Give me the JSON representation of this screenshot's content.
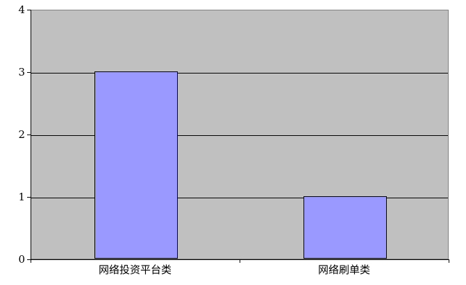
{
  "chart_data": {
    "type": "bar",
    "categories": [
      "网络投资平台类",
      "网络刷单类"
    ],
    "values": [
      3,
      1
    ],
    "title": "",
    "xlabel": "",
    "ylabel": "",
    "ylim": [
      0,
      4
    ],
    "yticks": [
      0,
      1,
      2,
      3,
      4
    ],
    "grid": true,
    "legend_position": "none",
    "colors": {
      "bar_fill": "#9999ff",
      "bar_border": "#000000",
      "plot_background": "#c0c0c0",
      "plot_border": "#808080",
      "axis_line": "#000000",
      "gridline": "#000000",
      "canvas_background": "#ffffff",
      "text": "#000000"
    }
  }
}
